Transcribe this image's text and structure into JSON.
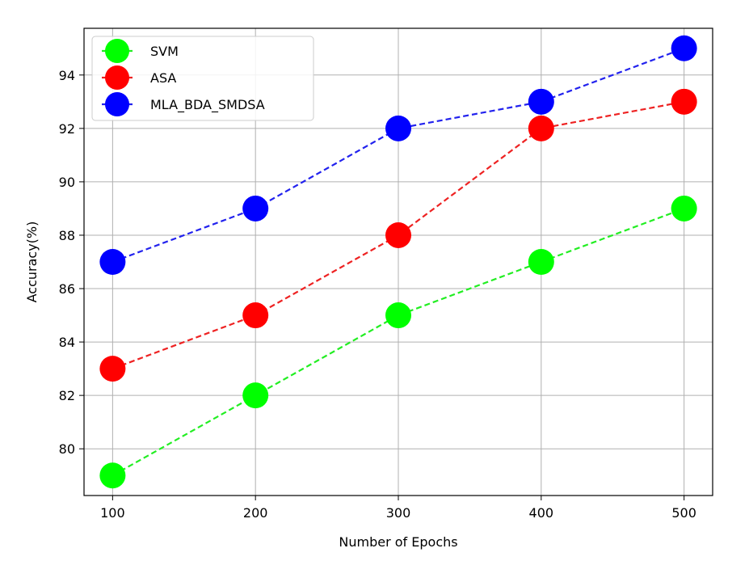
{
  "chart_data": {
    "type": "line",
    "title": "",
    "xlabel": "Number of Epochs",
    "ylabel": "Accuracy(%)",
    "x": [
      100,
      200,
      300,
      400,
      500
    ],
    "x_ticks": [
      100,
      200,
      300,
      400,
      500
    ],
    "y_ticks": [
      80,
      82,
      84,
      86,
      88,
      90,
      92,
      94
    ],
    "xlim": [
      80,
      520
    ],
    "ylim": [
      78.25,
      95.75
    ],
    "grid": true,
    "legend_position": "upper-left",
    "line_style": "dashed",
    "marker": "circle",
    "series": [
      {
        "name": "SVM",
        "color": "#00ff00",
        "line_color": "#22ee22",
        "values": [
          79,
          82,
          85,
          87,
          89
        ]
      },
      {
        "name": "ASA",
        "color": "#ff0000",
        "line_color": "#ee2222",
        "values": [
          83,
          85,
          88,
          92,
          93
        ]
      },
      {
        "name": "MLA_BDA_SMDSA",
        "color": "#0000ff",
        "line_color": "#2222ee",
        "values": [
          87,
          89,
          92,
          93,
          95
        ]
      }
    ]
  }
}
